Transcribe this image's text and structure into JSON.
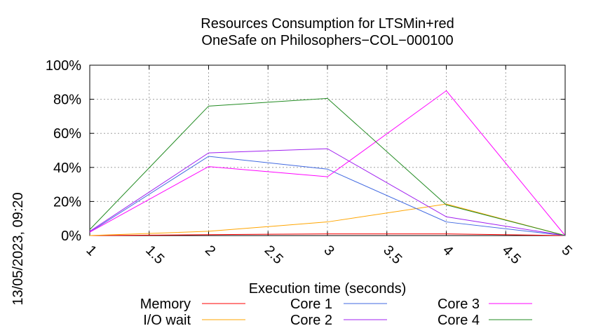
{
  "chart_data": {
    "type": "line",
    "title_lines": [
      "Resources Consumption for LTSMin+red",
      "OneSafe on Philosophers−COL−000100"
    ],
    "xlabel": "Execution time (seconds)",
    "ylabel": "",
    "xlim": [
      1,
      5
    ],
    "ylim": [
      0,
      100
    ],
    "x_ticks": [
      1,
      1.5,
      2,
      2.5,
      3,
      3.5,
      4,
      4.5,
      5
    ],
    "x_tick_labels": [
      "1",
      "1.5",
      "2",
      "2.5",
      "3",
      "3.5",
      "4",
      "4.5",
      "5"
    ],
    "y_ticks": [
      0,
      20,
      40,
      60,
      80,
      100
    ],
    "y_tick_labels": [
      "0%",
      "20%",
      "40%",
      "60%",
      "80%",
      "100%"
    ],
    "grid": true,
    "legend_position": "bottom",
    "timestamp": "13/05/2023, 09:20",
    "series": [
      {
        "name": "Memory",
        "color": "#ff0000",
        "x": [
          1,
          2,
          3,
          4,
          5
        ],
        "y": [
          0,
          0.5,
          1,
          1,
          0
        ]
      },
      {
        "name": "I/O wait",
        "color": "#ffa500",
        "x": [
          1,
          2,
          3,
          4,
          5
        ],
        "y": [
          0,
          2.5,
          8,
          18.5,
          0
        ]
      },
      {
        "name": "Core 1",
        "color": "#4169e1",
        "x": [
          1,
          2,
          3,
          4,
          5
        ],
        "y": [
          2,
          46.5,
          39,
          8,
          0
        ]
      },
      {
        "name": "Core 2",
        "color": "#a020f0",
        "x": [
          1,
          2,
          3,
          4,
          5
        ],
        "y": [
          2.5,
          48.5,
          51,
          11,
          0
        ]
      },
      {
        "name": "Core 3",
        "color": "#ff00ff",
        "x": [
          1,
          2,
          3,
          4,
          5
        ],
        "y": [
          2,
          40.5,
          34.5,
          85,
          0
        ]
      },
      {
        "name": "Core 4",
        "color": "#228b22",
        "x": [
          1,
          2,
          3,
          4,
          5
        ],
        "y": [
          3.5,
          76,
          80.5,
          18,
          0
        ]
      }
    ]
  }
}
